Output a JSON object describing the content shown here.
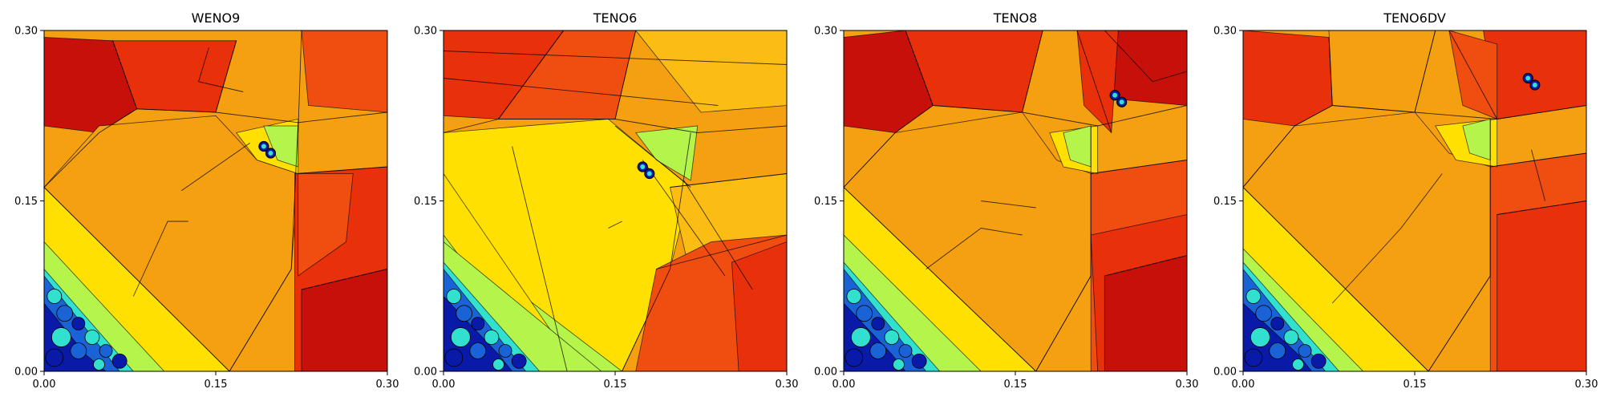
{
  "chart_data": [
    {
      "type": "heatmap",
      "title": "WENO9",
      "xlim": [
        0.0,
        0.3
      ],
      "ylim": [
        0.0,
        0.3
      ],
      "xticks": [
        "0.00",
        "0.15",
        "0.30"
      ],
      "yticks": [
        "0.00",
        "0.15",
        "0.30"
      ],
      "colormap": "jet",
      "contours": true
    },
    {
      "type": "heatmap",
      "title": "TENO6",
      "xlim": [
        0.0,
        0.3
      ],
      "ylim": [
        0.0,
        0.3
      ],
      "xticks": [
        "0.00",
        "0.15",
        "0.30"
      ],
      "yticks": [
        "0.00",
        "0.15",
        "0.30"
      ],
      "colormap": "jet",
      "contours": true
    },
    {
      "type": "heatmap",
      "title": "TENO8",
      "xlim": [
        0.0,
        0.3
      ],
      "ylim": [
        0.0,
        0.3
      ],
      "xticks": [
        "0.00",
        "0.15",
        "0.30"
      ],
      "yticks": [
        "0.00",
        "0.15",
        "0.30"
      ],
      "colormap": "jet",
      "contours": true
    },
    {
      "type": "heatmap",
      "title": "TENO6DV",
      "xlim": [
        0.0,
        0.3
      ],
      "ylim": [
        0.0,
        0.3
      ],
      "xticks": [
        "0.00",
        "0.15",
        "0.30"
      ],
      "yticks": [
        "0.00",
        "0.15",
        "0.30"
      ],
      "colormap": "jet",
      "contours": true
    }
  ],
  "colors": {
    "dark_red": "#c8100a",
    "red": "#e8300a",
    "red_orange": "#f04d10",
    "orange": "#f5a011",
    "orange_yellow": "#fbbd14",
    "yellow": "#ffe000",
    "light_green": "#b5f44a",
    "cyan": "#32e0d0",
    "blue": "#1a63d6",
    "dark_blue": "#0a1aa8"
  }
}
